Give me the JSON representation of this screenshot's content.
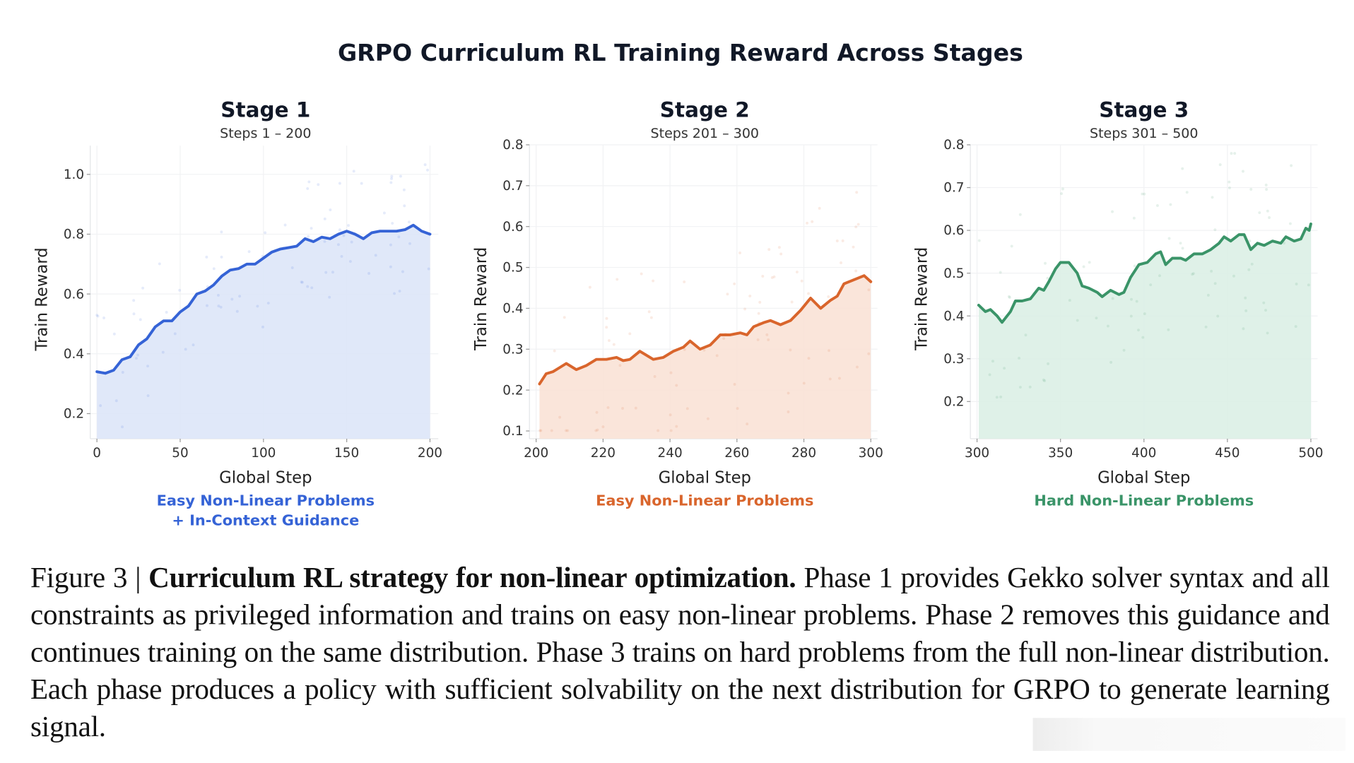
{
  "figure": {
    "title": "GRPO Curriculum RL Training Reward Across Stages",
    "caption_label": "Figure 3 |",
    "caption_bold": "Curriculum RL strategy for non-linear optimization.",
    "caption_text": "Phase 1 provides Gekko solver syntax and all constraints as privileged information and trains on easy non-linear problems. Phase 2 removes this guidance and continues training on the same distribution.  Phase 3 trains on hard problems from the full non-linear distribution. Each phase produces a policy with sufficient solvability on the next distribution for GRPO to generate learning signal."
  },
  "chart_data": [
    {
      "type": "line",
      "title": "Stage 1",
      "subtitle": "Steps 1 – 200",
      "xlabel": "Global Step",
      "ylabel": "Train Reward",
      "annotation": [
        "Easy Non-Linear Problems",
        "+ In-Context Guidance"
      ],
      "color": "#3563d6",
      "fill_color": "#dde6f8",
      "xlim": [
        -4,
        205
      ],
      "ylim": [
        0.116,
        1.096
      ],
      "xticks": [
        0,
        50,
        100,
        150,
        200
      ],
      "yticks": [
        0.2,
        0.4,
        0.6,
        0.8,
        1.0
      ],
      "ytick_labels": [
        "0.2",
        "0.4",
        "0.6",
        "0.8",
        "1.0"
      ],
      "grid": true,
      "x": [
        0,
        5,
        10,
        15,
        20,
        25,
        30,
        35,
        40,
        45,
        50,
        55,
        60,
        65,
        70,
        75,
        80,
        85,
        90,
        95,
        100,
        105,
        110,
        115,
        120,
        125,
        130,
        135,
        140,
        145,
        150,
        155,
        160,
        165,
        170,
        175,
        180,
        185,
        190,
        195,
        200
      ],
      "y": [
        0.34,
        0.335,
        0.345,
        0.38,
        0.39,
        0.43,
        0.45,
        0.49,
        0.51,
        0.51,
        0.54,
        0.56,
        0.6,
        0.61,
        0.63,
        0.66,
        0.68,
        0.685,
        0.7,
        0.7,
        0.72,
        0.74,
        0.75,
        0.755,
        0.76,
        0.785,
        0.775,
        0.79,
        0.785,
        0.8,
        0.81,
        0.8,
        0.785,
        0.805,
        0.81,
        0.81,
        0.81,
        0.815,
        0.83,
        0.81,
        0.8
      ]
    },
    {
      "type": "line",
      "title": "Stage 2",
      "subtitle": "Steps 201 – 300",
      "xlabel": "Global Step",
      "ylabel": "Train Reward",
      "annotation": [
        "Easy Non-Linear Problems"
      ],
      "color": "#d9652c",
      "fill_color": "#f9e2d6",
      "xlim": [
        198,
        302
      ],
      "ylim": [
        0.081,
        0.8
      ],
      "xticks": [
        200,
        220,
        240,
        260,
        280,
        300
      ],
      "yticks": [
        0.1,
        0.2,
        0.3,
        0.4,
        0.5,
        0.6,
        0.7,
        0.8
      ],
      "ytick_labels": [
        "0.1",
        "0.2",
        "0.3",
        "0.4",
        "0.5",
        "0.6",
        "0.7",
        "0.8"
      ],
      "grid": true,
      "x": [
        201,
        203,
        205,
        207,
        209,
        212,
        215,
        218,
        221,
        224,
        226,
        228,
        231,
        235,
        238,
        241,
        244,
        246,
        249,
        252,
        255,
        258,
        261,
        263,
        265,
        268,
        270,
        273,
        276,
        279,
        282,
        285,
        288,
        290,
        292,
        295,
        298,
        300
      ],
      "y": [
        0.215,
        0.24,
        0.245,
        0.255,
        0.265,
        0.25,
        0.26,
        0.275,
        0.275,
        0.28,
        0.272,
        0.275,
        0.295,
        0.275,
        0.28,
        0.295,
        0.305,
        0.32,
        0.3,
        0.31,
        0.335,
        0.335,
        0.34,
        0.335,
        0.355,
        0.365,
        0.37,
        0.36,
        0.37,
        0.395,
        0.425,
        0.4,
        0.42,
        0.43,
        0.46,
        0.47,
        0.48,
        0.465
      ]
    },
    {
      "type": "line",
      "title": "Stage 3",
      "subtitle": "Steps 301 – 500",
      "xlabel": "Global Step",
      "ylabel": "Train Reward",
      "annotation": [
        "Hard Non-Linear Problems"
      ],
      "color": "#3a9468",
      "fill_color": "#dcefe6",
      "xlim": [
        296,
        504
      ],
      "ylim": [
        0.113,
        0.8
      ],
      "xticks": [
        300,
        350,
        400,
        450,
        500
      ],
      "yticks": [
        0.2,
        0.3,
        0.4,
        0.5,
        0.6,
        0.7,
        0.8
      ],
      "ytick_labels": [
        "0.2",
        "0.3",
        "0.4",
        "0.5",
        "0.6",
        "0.7",
        "0.8"
      ],
      "grid": true,
      "x": [
        301,
        305,
        308,
        312,
        315,
        320,
        323,
        327,
        332,
        337,
        340,
        343,
        347,
        350,
        355,
        360,
        363,
        367,
        372,
        375,
        380,
        385,
        388,
        392,
        397,
        402,
        407,
        410,
        413,
        417,
        422,
        425,
        430,
        435,
        440,
        445,
        448,
        452,
        457,
        460,
        464,
        468,
        472,
        477,
        482,
        485,
        490,
        494,
        497,
        499,
        500
      ],
      "y": [
        0.425,
        0.41,
        0.415,
        0.4,
        0.385,
        0.41,
        0.435,
        0.435,
        0.44,
        0.465,
        0.46,
        0.48,
        0.51,
        0.525,
        0.525,
        0.5,
        0.47,
        0.465,
        0.455,
        0.445,
        0.46,
        0.45,
        0.455,
        0.49,
        0.52,
        0.525,
        0.545,
        0.55,
        0.52,
        0.535,
        0.535,
        0.53,
        0.545,
        0.545,
        0.555,
        0.57,
        0.585,
        0.575,
        0.59,
        0.59,
        0.555,
        0.57,
        0.565,
        0.575,
        0.57,
        0.585,
        0.575,
        0.58,
        0.605,
        0.6,
        0.615
      ]
    }
  ]
}
